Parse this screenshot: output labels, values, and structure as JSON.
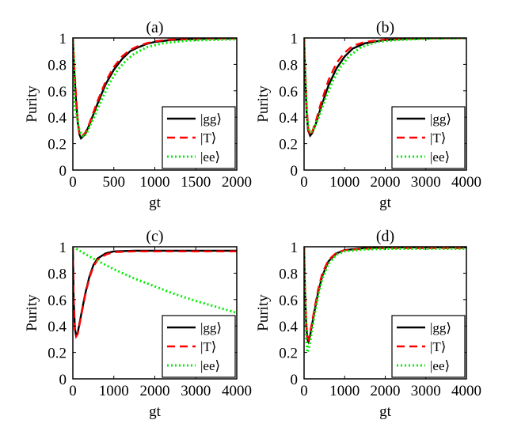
{
  "chart_data": [
    {
      "type": "line",
      "title": "(a)",
      "xlabel": "gt",
      "ylabel": "Purity",
      "xlim": [
        0,
        2000
      ],
      "ylim": [
        0,
        1
      ],
      "xticks": [
        "0",
        "500",
        "1000",
        "1500",
        "2000"
      ],
      "yticks": [
        "0",
        "0.2",
        "0.4",
        "0.6",
        "0.8",
        "1"
      ],
      "legend": [
        "|gg⟩",
        "|T⟩",
        "|ee⟩"
      ],
      "series": [
        {
          "name": "|gg⟩",
          "color": "#000000",
          "style": "solid",
          "points": [
            [
              0,
              1
            ],
            [
              20,
              0.72
            ],
            [
              40,
              0.52
            ],
            [
              60,
              0.36
            ],
            [
              80,
              0.27
            ],
            [
              100,
              0.24
            ],
            [
              150,
              0.27
            ],
            [
              200,
              0.34
            ],
            [
              300,
              0.5
            ],
            [
              400,
              0.65
            ],
            [
              500,
              0.76
            ],
            [
              600,
              0.84
            ],
            [
              700,
              0.9
            ],
            [
              800,
              0.93
            ],
            [
              900,
              0.955
            ],
            [
              1000,
              0.97
            ],
            [
              1200,
              0.985
            ],
            [
              1500,
              0.993
            ],
            [
              2000,
              0.997
            ]
          ]
        },
        {
          "name": "|T⟩",
          "color": "#ff0000",
          "style": "dashed",
          "points": [
            [
              0,
              1
            ],
            [
              20,
              0.75
            ],
            [
              40,
              0.55
            ],
            [
              60,
              0.38
            ],
            [
              80,
              0.28
            ],
            [
              100,
              0.25
            ],
            [
              150,
              0.28
            ],
            [
              200,
              0.35
            ],
            [
              300,
              0.52
            ],
            [
              400,
              0.67
            ],
            [
              500,
              0.78
            ],
            [
              600,
              0.86
            ],
            [
              700,
              0.91
            ],
            [
              800,
              0.94
            ],
            [
              900,
              0.96
            ],
            [
              1000,
              0.975
            ],
            [
              1200,
              0.988
            ],
            [
              1500,
              0.994
            ],
            [
              2000,
              0.997
            ]
          ]
        },
        {
          "name": "|ee⟩",
          "color": "#00ee00",
          "style": "dotted",
          "points": [
            [
              0,
              1
            ],
            [
              10,
              0.8
            ],
            [
              20,
              0.55
            ],
            [
              30,
              0.45
            ],
            [
              50,
              0.42
            ],
            [
              70,
              0.32
            ],
            [
              100,
              0.28
            ],
            [
              130,
              0.25
            ],
            [
              170,
              0.28
            ],
            [
              250,
              0.39
            ],
            [
              350,
              0.53
            ],
            [
              450,
              0.66
            ],
            [
              550,
              0.76
            ],
            [
              650,
              0.83
            ],
            [
              750,
              0.88
            ],
            [
              900,
              0.93
            ],
            [
              1100,
              0.96
            ],
            [
              1400,
              0.98
            ],
            [
              2000,
              0.99
            ]
          ]
        }
      ]
    },
    {
      "type": "line",
      "title": "(b)",
      "xlabel": "gt",
      "ylabel": "Purity",
      "xlim": [
        0,
        4000
      ],
      "ylim": [
        0,
        1
      ],
      "xticks": [
        "0",
        "1000",
        "2000",
        "3000",
        "4000"
      ],
      "yticks": [
        "0",
        "0.2",
        "0.4",
        "0.6",
        "0.8",
        "1"
      ],
      "legend": [
        "|gg⟩",
        "|T⟩",
        "|ee⟩"
      ],
      "series": [
        {
          "name": "|gg⟩",
          "color": "#000000",
          "style": "solid",
          "points": [
            [
              0,
              1
            ],
            [
              30,
              0.7
            ],
            [
              60,
              0.45
            ],
            [
              100,
              0.3
            ],
            [
              150,
              0.26
            ],
            [
              200,
              0.28
            ],
            [
              300,
              0.36
            ],
            [
              400,
              0.46
            ],
            [
              600,
              0.64
            ],
            [
              800,
              0.77
            ],
            [
              1000,
              0.86
            ],
            [
              1200,
              0.92
            ],
            [
              1500,
              0.96
            ],
            [
              2000,
              0.985
            ],
            [
              2500,
              0.993
            ],
            [
              3000,
              0.997
            ],
            [
              4000,
              0.999
            ]
          ]
        },
        {
          "name": "|T⟩",
          "color": "#ff0000",
          "style": "dashed",
          "points": [
            [
              0,
              1
            ],
            [
              30,
              0.75
            ],
            [
              60,
              0.5
            ],
            [
              100,
              0.32
            ],
            [
              150,
              0.26
            ],
            [
              200,
              0.29
            ],
            [
              300,
              0.38
            ],
            [
              400,
              0.49
            ],
            [
              600,
              0.68
            ],
            [
              800,
              0.81
            ],
            [
              1000,
              0.89
            ],
            [
              1200,
              0.94
            ],
            [
              1500,
              0.97
            ],
            [
              2000,
              0.988
            ],
            [
              2500,
              0.995
            ],
            [
              3000,
              0.998
            ],
            [
              4000,
              0.999
            ]
          ]
        },
        {
          "name": "|ee⟩",
          "color": "#00ee00",
          "style": "dotted",
          "points": [
            [
              0,
              1
            ],
            [
              20,
              0.8
            ],
            [
              40,
              0.6
            ],
            [
              70,
              0.4
            ],
            [
              120,
              0.3
            ],
            [
              180,
              0.29
            ],
            [
              250,
              0.32
            ],
            [
              350,
              0.39
            ],
            [
              500,
              0.52
            ],
            [
              700,
              0.67
            ],
            [
              900,
              0.78
            ],
            [
              1100,
              0.86
            ],
            [
              1400,
              0.93
            ],
            [
              1800,
              0.97
            ],
            [
              2300,
              0.985
            ],
            [
              3000,
              0.995
            ],
            [
              4000,
              0.999
            ]
          ]
        }
      ]
    },
    {
      "type": "line",
      "title": "(c)",
      "xlabel": "gt",
      "ylabel": "Purity",
      "xlim": [
        0,
        4000
      ],
      "ylim": [
        0,
        1
      ],
      "xticks": [
        "0",
        "1000",
        "2000",
        "3000",
        "4000"
      ],
      "yticks": [
        "0",
        "0.2",
        "0.4",
        "0.6",
        "0.8",
        "1"
      ],
      "legend": [
        "|gg⟩",
        "|T⟩",
        "|ee⟩"
      ],
      "series": [
        {
          "name": "|gg⟩",
          "color": "#000000",
          "style": "solid",
          "points": [
            [
              0,
              1
            ],
            [
              20,
              0.6
            ],
            [
              50,
              0.38
            ],
            [
              80,
              0.33
            ],
            [
              120,
              0.35
            ],
            [
              200,
              0.48
            ],
            [
              300,
              0.64
            ],
            [
              400,
              0.77
            ],
            [
              500,
              0.86
            ],
            [
              600,
              0.91
            ],
            [
              800,
              0.95
            ],
            [
              1000,
              0.965
            ],
            [
              1500,
              0.97
            ],
            [
              4000,
              0.97
            ]
          ]
        },
        {
          "name": "|T⟩",
          "color": "#ff0000",
          "style": "dashed",
          "points": [
            [
              0,
              1
            ],
            [
              20,
              0.58
            ],
            [
              50,
              0.36
            ],
            [
              80,
              0.32
            ],
            [
              120,
              0.34
            ],
            [
              200,
              0.47
            ],
            [
              300,
              0.63
            ],
            [
              400,
              0.76
            ],
            [
              500,
              0.85
            ],
            [
              600,
              0.9
            ],
            [
              800,
              0.94
            ],
            [
              1000,
              0.96
            ],
            [
              1500,
              0.965
            ],
            [
              4000,
              0.965
            ]
          ]
        },
        {
          "name": "|ee⟩",
          "color": "#00ee00",
          "style": "dotted",
          "points": [
            [
              0,
              1
            ],
            [
              500,
              0.91
            ],
            [
              1000,
              0.83
            ],
            [
              1500,
              0.76
            ],
            [
              2000,
              0.7
            ],
            [
              2500,
              0.64
            ],
            [
              3000,
              0.59
            ],
            [
              3500,
              0.545
            ],
            [
              4000,
              0.5
            ]
          ]
        }
      ]
    },
    {
      "type": "line",
      "title": "(d)",
      "xlabel": "gt",
      "ylabel": "Purity",
      "xlim": [
        0,
        4000
      ],
      "ylim": [
        0,
        1
      ],
      "xticks": [
        "0",
        "1000",
        "2000",
        "3000",
        "4000"
      ],
      "yticks": [
        "0",
        "0.2",
        "0.4",
        "0.6",
        "0.8",
        "1"
      ],
      "legend": [
        "|gg⟩",
        "|T⟩",
        "|ee⟩"
      ],
      "series": [
        {
          "name": "|gg⟩",
          "color": "#000000",
          "style": "solid",
          "points": [
            [
              0,
              1
            ],
            [
              20,
              0.7
            ],
            [
              50,
              0.42
            ],
            [
              80,
              0.3
            ],
            [
              110,
              0.28
            ],
            [
              150,
              0.33
            ],
            [
              250,
              0.5
            ],
            [
              350,
              0.66
            ],
            [
              450,
              0.78
            ],
            [
              600,
              0.89
            ],
            [
              800,
              0.95
            ],
            [
              1000,
              0.975
            ],
            [
              1500,
              0.99
            ],
            [
              2000,
              0.995
            ],
            [
              4000,
              0.995
            ]
          ]
        },
        {
          "name": "|T⟩",
          "color": "#ff0000",
          "style": "dashed",
          "points": [
            [
              0,
              1
            ],
            [
              20,
              0.72
            ],
            [
              50,
              0.44
            ],
            [
              80,
              0.32
            ],
            [
              110,
              0.3
            ],
            [
              150,
              0.35
            ],
            [
              250,
              0.52
            ],
            [
              350,
              0.68
            ],
            [
              450,
              0.8
            ],
            [
              600,
              0.9
            ],
            [
              800,
              0.955
            ],
            [
              1000,
              0.975
            ],
            [
              1500,
              0.985
            ],
            [
              2000,
              0.99
            ],
            [
              4000,
              0.99
            ]
          ]
        },
        {
          "name": "|ee⟩",
          "color": "#00ee00",
          "style": "dotted",
          "points": [
            [
              0,
              1
            ],
            [
              20,
              0.6
            ],
            [
              50,
              0.3
            ],
            [
              80,
              0.2
            ],
            [
              110,
              0.22
            ],
            [
              160,
              0.3
            ],
            [
              250,
              0.47
            ],
            [
              350,
              0.63
            ],
            [
              450,
              0.76
            ],
            [
              600,
              0.87
            ],
            [
              800,
              0.94
            ],
            [
              1000,
              0.965
            ],
            [
              1500,
              0.98
            ],
            [
              2000,
              0.985
            ],
            [
              4000,
              0.985
            ]
          ]
        }
      ]
    }
  ]
}
